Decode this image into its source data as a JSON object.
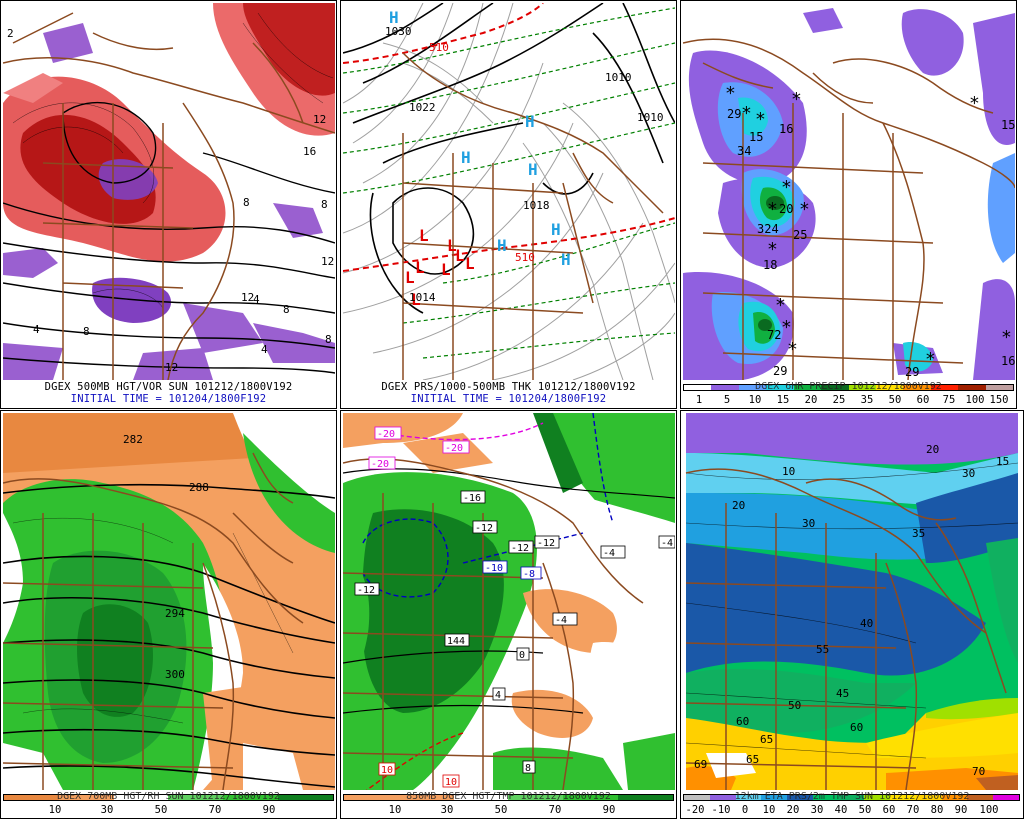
{
  "panels": {
    "p1": {
      "caption": "DGEX 500MB HGT/VOR SUN 101212/1800V192",
      "initial": "INITIAL TIME = 101204/1800F192",
      "labels": [
        "8",
        "12",
        "4",
        "8",
        "12",
        "12",
        "16",
        "8",
        "4",
        "8",
        "4",
        "8",
        "2",
        "12"
      ]
    },
    "p2": {
      "caption": "DGEX PRS/1000-500MB THK 101212/1800V192",
      "initial": "INITIAL TIME = 101204/1800F192",
      "contours": [
        "1030",
        "1022",
        "1018",
        "1014",
        "1010",
        "1010",
        "510",
        "510"
      ],
      "high_symbol": "H",
      "low_symbol": "L"
    },
    "p3": {
      "caption": "DGEX 6HR PRECIP 101212/1800V192",
      "colorbar_labels": [
        "1",
        "5",
        "10",
        "15",
        "20",
        "25",
        "35",
        "50",
        "60",
        "75",
        "100",
        "150"
      ],
      "values": [
        "29",
        "15",
        "34",
        "16",
        "20",
        "324",
        "25",
        "18",
        "72",
        "29",
        "16",
        "15",
        "29"
      ]
    },
    "p4": {
      "caption": "DGEX 700MB HGT/RH SUN 101212/1800V192",
      "colorbar_labels": [
        "10",
        "30",
        "50",
        "70",
        "90"
      ],
      "contours": [
        "288",
        "294",
        "300",
        "282"
      ]
    },
    "p5": {
      "caption": "850MB DGEX HGT/TMP 101212/1800V192",
      "colorbar_labels": [
        "10",
        "30",
        "50",
        "70",
        "90"
      ],
      "temp_labels": [
        "-20",
        "-20",
        "-20",
        "-16",
        "-12",
        "-12",
        "-12",
        "-10",
        "-8",
        "-4",
        "-4",
        "-4",
        "-12",
        "0",
        "4",
        "8",
        "10",
        "10",
        "144"
      ]
    },
    "p6": {
      "caption": "12km ETA PRS/2m TMP SUN 101212/1800V192",
      "colorbar_labels": [
        "-20",
        "-10",
        "0",
        "10",
        "20",
        "30",
        "40",
        "50",
        "60",
        "70",
        "80",
        "90",
        "100"
      ],
      "temp_labels": [
        "10",
        "20",
        "30",
        "35",
        "40",
        "45",
        "50",
        "55",
        "60",
        "65",
        "70",
        "60",
        "65",
        "69",
        "30",
        "20",
        "15"
      ]
    }
  }
}
